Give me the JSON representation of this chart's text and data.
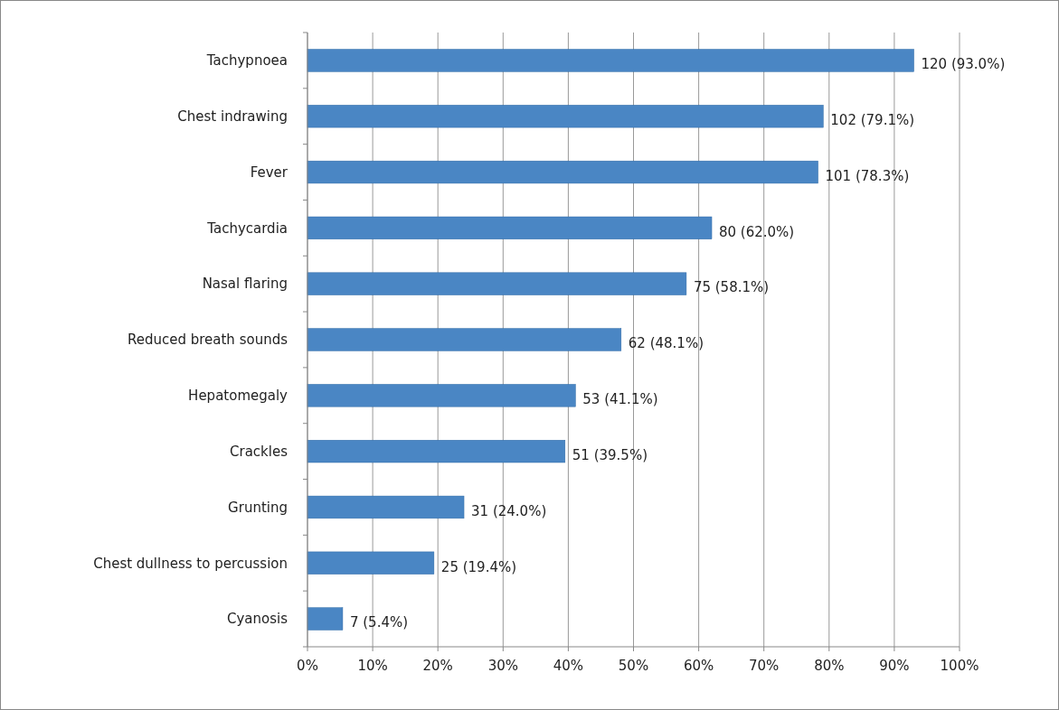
{
  "chart_data": {
    "type": "bar",
    "orientation": "horizontal",
    "categories": [
      "Tachypnoea",
      "Chest indrawing",
      "Fever ",
      "Tachycardia",
      "Nasal flaring",
      "Reduced breath sounds",
      "Hepatomegaly",
      "Crackles",
      "Grunting",
      "Chest dullness to percussion",
      "Cyanosis"
    ],
    "values": [
      93.0,
      79.1,
      78.3,
      62.0,
      58.1,
      48.1,
      41.1,
      39.5,
      24.0,
      19.4,
      5.4
    ],
    "value_labels": [
      "120 (93.0%)",
      "102 (79.1%)",
      "101 (78.3%)",
      "80 (62.0%)",
      "75 (58.1%)",
      "62 (48.1%)",
      "53 (41.1%)",
      "51 (39.5%)",
      "31 (24.0%)",
      "25 (19.4%)",
      "7 (5.4%)"
    ],
    "color": "#4a86c4",
    "xlim": [
      0,
      100
    ],
    "xticks": [
      {
        "value": 0,
        "label": "0%"
      },
      {
        "value": 10,
        "label": "10%"
      },
      {
        "value": 20,
        "label": "20%"
      },
      {
        "value": 30,
        "label": "30%"
      },
      {
        "value": 40,
        "label": "40%"
      },
      {
        "value": 50,
        "label": "50%"
      },
      {
        "value": 60,
        "label": "60%"
      },
      {
        "value": 70,
        "label": "70%"
      },
      {
        "value": 80,
        "label": "80%"
      },
      {
        "value": 90,
        "label": "90%"
      },
      {
        "value": 100,
        "label": "100%"
      }
    ],
    "grid": "x"
  }
}
